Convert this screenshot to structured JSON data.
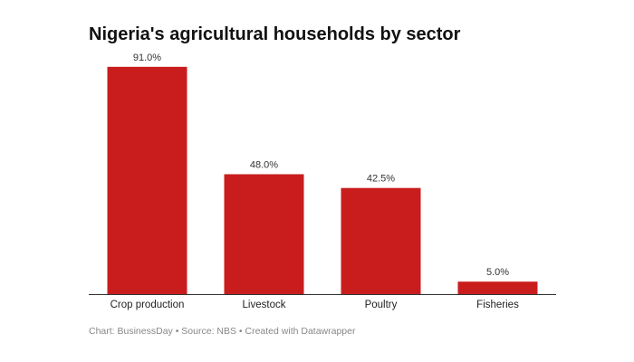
{
  "chart_data": {
    "type": "bar",
    "title": "Nigeria's agricultural households by sector",
    "categories": [
      "Crop production",
      "Livestock",
      "Poultry",
      "Fisheries"
    ],
    "values": [
      91.0,
      48.0,
      42.5,
      5.0
    ],
    "value_labels": [
      "91.0%",
      "48.0%",
      "42.5%",
      "5.0%"
    ],
    "ylim": [
      0,
      100
    ],
    "grid": false,
    "bar_color": "#c91d1d",
    "footer": "Chart: BusinessDay • Source: NBS • Created with Datawrapper"
  }
}
